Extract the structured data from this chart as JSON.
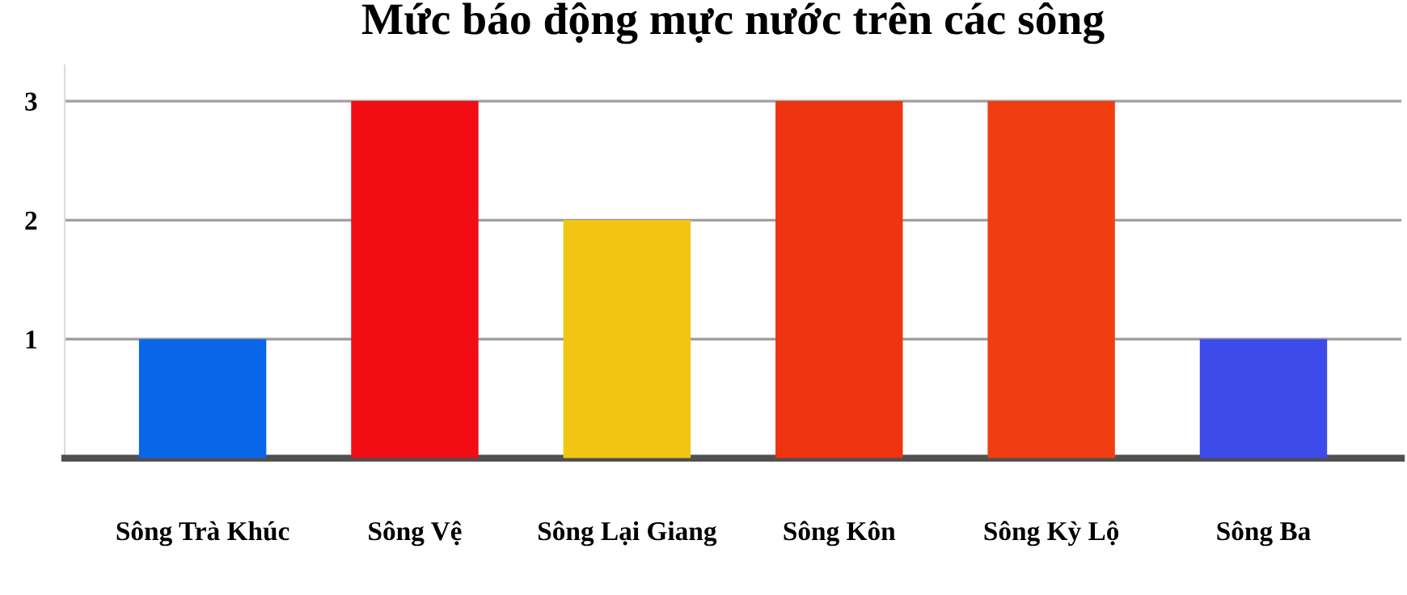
{
  "chart_data": {
    "type": "bar",
    "title": "Mức báo động mực nước trên các sông",
    "categories": [
      "Sông Trà Khúc",
      "Sông Vệ",
      "Sông Lại Giang",
      "Sông Kôn",
      "Sông Kỳ Lộ",
      "Sông Ba"
    ],
    "values": [
      1,
      3,
      2,
      3,
      3,
      1
    ],
    "colors": [
      "#0a66e8",
      "#f20c14",
      "#f2c512",
      "#ee3410",
      "#f03e12",
      "#3c4bea"
    ],
    "ylim": [
      0,
      3.3
    ],
    "yticks": [
      1,
      2,
      3
    ],
    "grid": "y"
  }
}
